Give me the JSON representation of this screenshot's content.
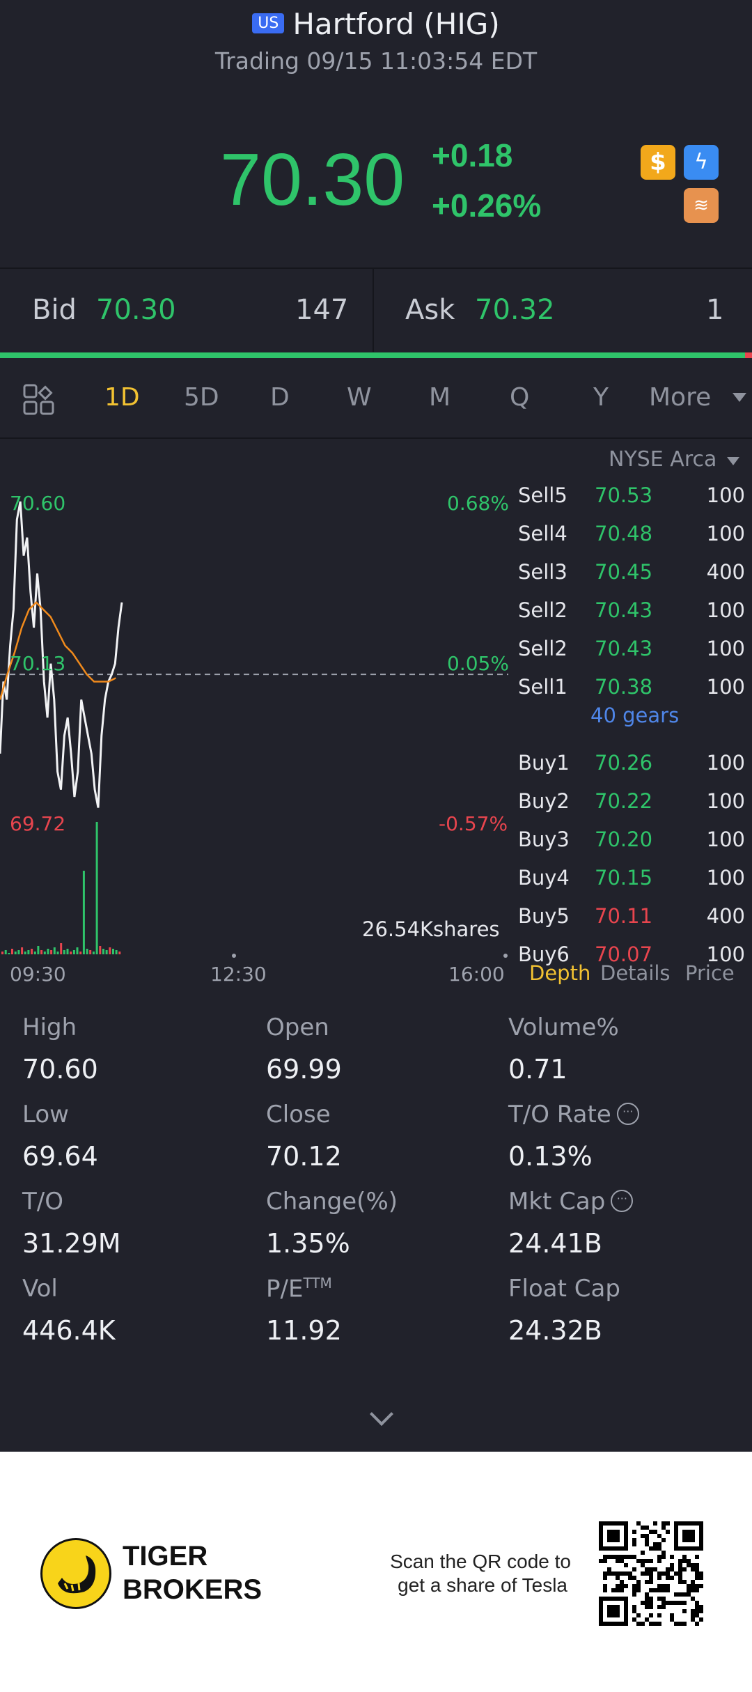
{
  "header": {
    "market_badge": "US",
    "title": "Hartford (HIG)",
    "status": "Trading 09/15 11:03:54 EDT"
  },
  "quote": {
    "price": "70.30",
    "change": "+0.18",
    "change_pct": "+0.26%",
    "icons": [
      "dollar-icon",
      "flash-icon",
      "stack-icon"
    ],
    "up_color": "#2fc46a",
    "down_color": "#e8454e"
  },
  "bid_ask": {
    "bid_label": "Bid",
    "bid_price": "70.30",
    "bid_size": "147",
    "ask_label": "Ask",
    "ask_price": "70.32",
    "ask_size": "1",
    "bid_share": 0.99
  },
  "tabs": [
    "1D",
    "5D",
    "D",
    "W",
    "M",
    "Q",
    "Y",
    "More"
  ],
  "active_tab": "1D",
  "chart": {
    "exchange": "NYSE Arca",
    "y_high_label": "70.60",
    "y_mid_label": "70.13",
    "y_low_label": "69.72",
    "pct_high": "0.68%",
    "pct_mid": "0.05%",
    "pct_low": "-0.57%",
    "volume_label": "26.54Kshares",
    "time_labels": [
      "09:30",
      "12:30",
      "16:00"
    ]
  },
  "chart_data": {
    "type": "line",
    "ylim": [
      69.72,
      70.6
    ],
    "reference_close": 70.12,
    "series": [
      {
        "values": [
          69.9,
          70.1,
          70.05,
          70.2,
          70.3,
          70.55,
          70.6,
          70.45,
          70.5,
          70.35,
          70.25,
          70.4,
          70.3,
          70.1,
          70.0,
          70.15,
          70.05,
          69.85,
          69.8,
          69.95,
          70.0,
          69.9,
          69.78,
          69.85,
          70.05,
          70.0,
          69.95,
          69.9,
          69.8,
          69.75,
          69.95,
          70.05,
          70.1,
          70.12,
          70.15,
          70.25,
          70.32
        ]
      },
      {
        "values": [
          70.05,
          70.12,
          70.18,
          70.25,
          70.3,
          70.32,
          70.3,
          70.28,
          70.24,
          70.2,
          70.18,
          70.15,
          70.12,
          70.1,
          70.1,
          70.1,
          70.11
        ]
      }
    ],
    "volume": [
      2,
      3,
      1,
      4,
      2,
      3,
      5,
      2,
      3,
      4,
      2,
      6,
      3,
      2,
      4,
      3,
      5,
      2,
      8,
      3,
      4,
      2,
      3,
      5,
      2,
      60,
      4,
      3,
      2,
      95,
      6,
      4,
      3,
      5,
      4,
      3,
      2
    ]
  },
  "order_book": {
    "rows": [
      {
        "side": "Sell5",
        "price": "70.53",
        "size": "100",
        "color": "green"
      },
      {
        "side": "Sell4",
        "price": "70.48",
        "size": "100",
        "color": "green"
      },
      {
        "side": "Sell3",
        "price": "70.45",
        "size": "400",
        "color": "green"
      },
      {
        "side": "Sell2",
        "price": "70.43",
        "size": "100",
        "color": "green"
      },
      {
        "side": "Sell2",
        "price": "70.43",
        "size": "100",
        "color": "green"
      },
      {
        "side": "Sell1",
        "price": "70.38",
        "size": "100",
        "color": "green"
      },
      {
        "side": "Buy1",
        "price": "70.26",
        "size": "100",
        "color": "green"
      },
      {
        "side": "Buy2",
        "price": "70.22",
        "size": "100",
        "color": "green"
      },
      {
        "side": "Buy3",
        "price": "70.20",
        "size": "100",
        "color": "green"
      },
      {
        "side": "Buy4",
        "price": "70.15",
        "size": "100",
        "color": "green"
      },
      {
        "side": "Buy5",
        "price": "70.11",
        "size": "400",
        "color": "red"
      },
      {
        "side": "Buy6",
        "price": "70.07",
        "size": "100",
        "color": "red"
      }
    ],
    "gears": "40 gears",
    "tabs": [
      "Depth",
      "Details",
      "Price"
    ]
  },
  "stats": [
    {
      "label": "High",
      "value": "70.60"
    },
    {
      "label": "Open",
      "value": "69.99"
    },
    {
      "label": "Volume%",
      "value": "0.71"
    },
    {
      "label": "Low",
      "value": "69.64"
    },
    {
      "label": "Close",
      "value": "70.12"
    },
    {
      "label": "T/O Rate",
      "value": "0.13%"
    },
    {
      "label": "T/O",
      "value": "31.29M"
    },
    {
      "label": "Change(%)",
      "value": "1.35%"
    },
    {
      "label": "Mkt Cap",
      "value": "24.41B"
    },
    {
      "label": "Vol",
      "value": "446.4K"
    },
    {
      "label": "P/E",
      "value": "11.92",
      "sup": "TTM"
    },
    {
      "label": "Float Cap",
      "value": "24.32B"
    }
  ],
  "footer": {
    "brand_line1": "TIGER",
    "brand_line2": "BROKERS",
    "scan_line1": "Scan the QR code to",
    "scan_line2": "get a share of Tesla"
  }
}
